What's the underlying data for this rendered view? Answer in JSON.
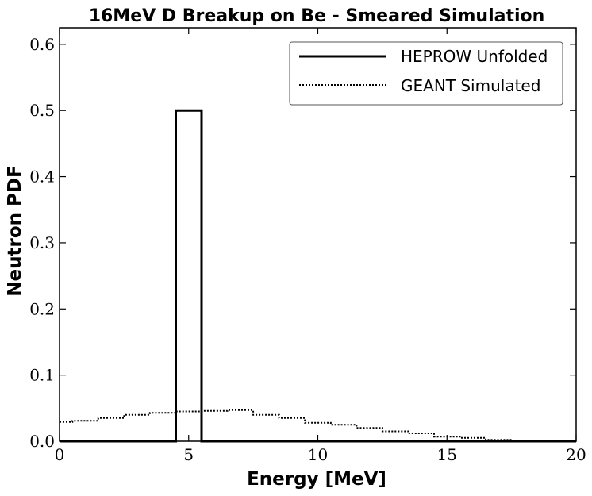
{
  "chart_data": {
    "type": "line",
    "title": "16MeV D Breakup on Be - Smeared Simulation",
    "xlabel": "Energy [MeV]",
    "ylabel": "Neutron PDF",
    "xlim": [
      0,
      20
    ],
    "ylim": [
      0,
      0.625
    ],
    "xticks": [
      0,
      5,
      10,
      15,
      20
    ],
    "xtick_labels": [
      "0",
      "5",
      "10",
      "15",
      "20"
    ],
    "yticks": [
      0.0,
      0.1,
      0.2,
      0.3,
      0.4,
      0.5,
      0.6
    ],
    "ytick_labels": [
      "0.0",
      "0.1",
      "0.2",
      "0.3",
      "0.4",
      "0.5",
      "0.6"
    ],
    "grid": false,
    "legend_position": "top-right",
    "series": [
      {
        "name": "HEPROW Unfolded",
        "style": "solid",
        "color": "#000000",
        "kind": "step",
        "edges": [
          0,
          4.5,
          5.5,
          20
        ],
        "values": [
          0.0,
          0.5,
          0.0
        ]
      },
      {
        "name": "GEANT Simulated",
        "style": "dotted",
        "color": "#000000",
        "kind": "step",
        "edges": [
          0,
          0.5,
          1.5,
          2.5,
          3.5,
          4.5,
          5.5,
          6.5,
          7.5,
          8.5,
          9.5,
          10.5,
          11.5,
          12.5,
          13.5,
          14.5,
          15.5,
          16.5,
          17.5,
          18.5,
          20
        ],
        "values": [
          0.029,
          0.031,
          0.035,
          0.04,
          0.043,
          0.045,
          0.046,
          0.047,
          0.04,
          0.035,
          0.028,
          0.025,
          0.02,
          0.015,
          0.012,
          0.007,
          0.005,
          0.002,
          0.001,
          0.0
        ]
      }
    ]
  }
}
